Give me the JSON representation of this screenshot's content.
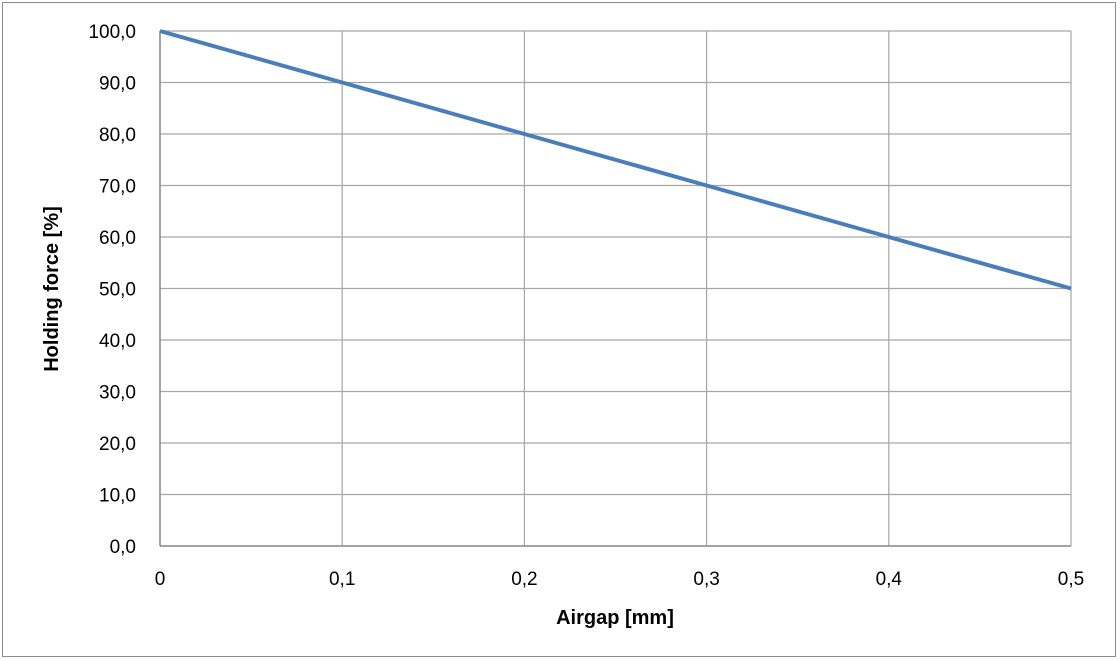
{
  "chart_data": {
    "type": "line",
    "title": "",
    "xlabel": "Airgap [mm]",
    "ylabel": "Holding force [%]",
    "x": [
      0,
      0.1,
      0.2,
      0.3,
      0.4,
      0.5
    ],
    "series": [
      {
        "values": [
          100,
          90,
          80,
          70,
          60,
          50
        ],
        "color": "#4a7ebb"
      }
    ],
    "xlim": [
      0,
      0.5
    ],
    "ylim": [
      0,
      100
    ],
    "x_ticks": [
      "0",
      "0,1",
      "0,2",
      "0,3",
      "0,4",
      "0,5"
    ],
    "y_ticks": [
      "0,0",
      "10,0",
      "20,0",
      "30,0",
      "40,0",
      "50,0",
      "60,0",
      "70,0",
      "80,0",
      "90,0",
      "100,0"
    ],
    "grid": true,
    "legend": "none"
  }
}
